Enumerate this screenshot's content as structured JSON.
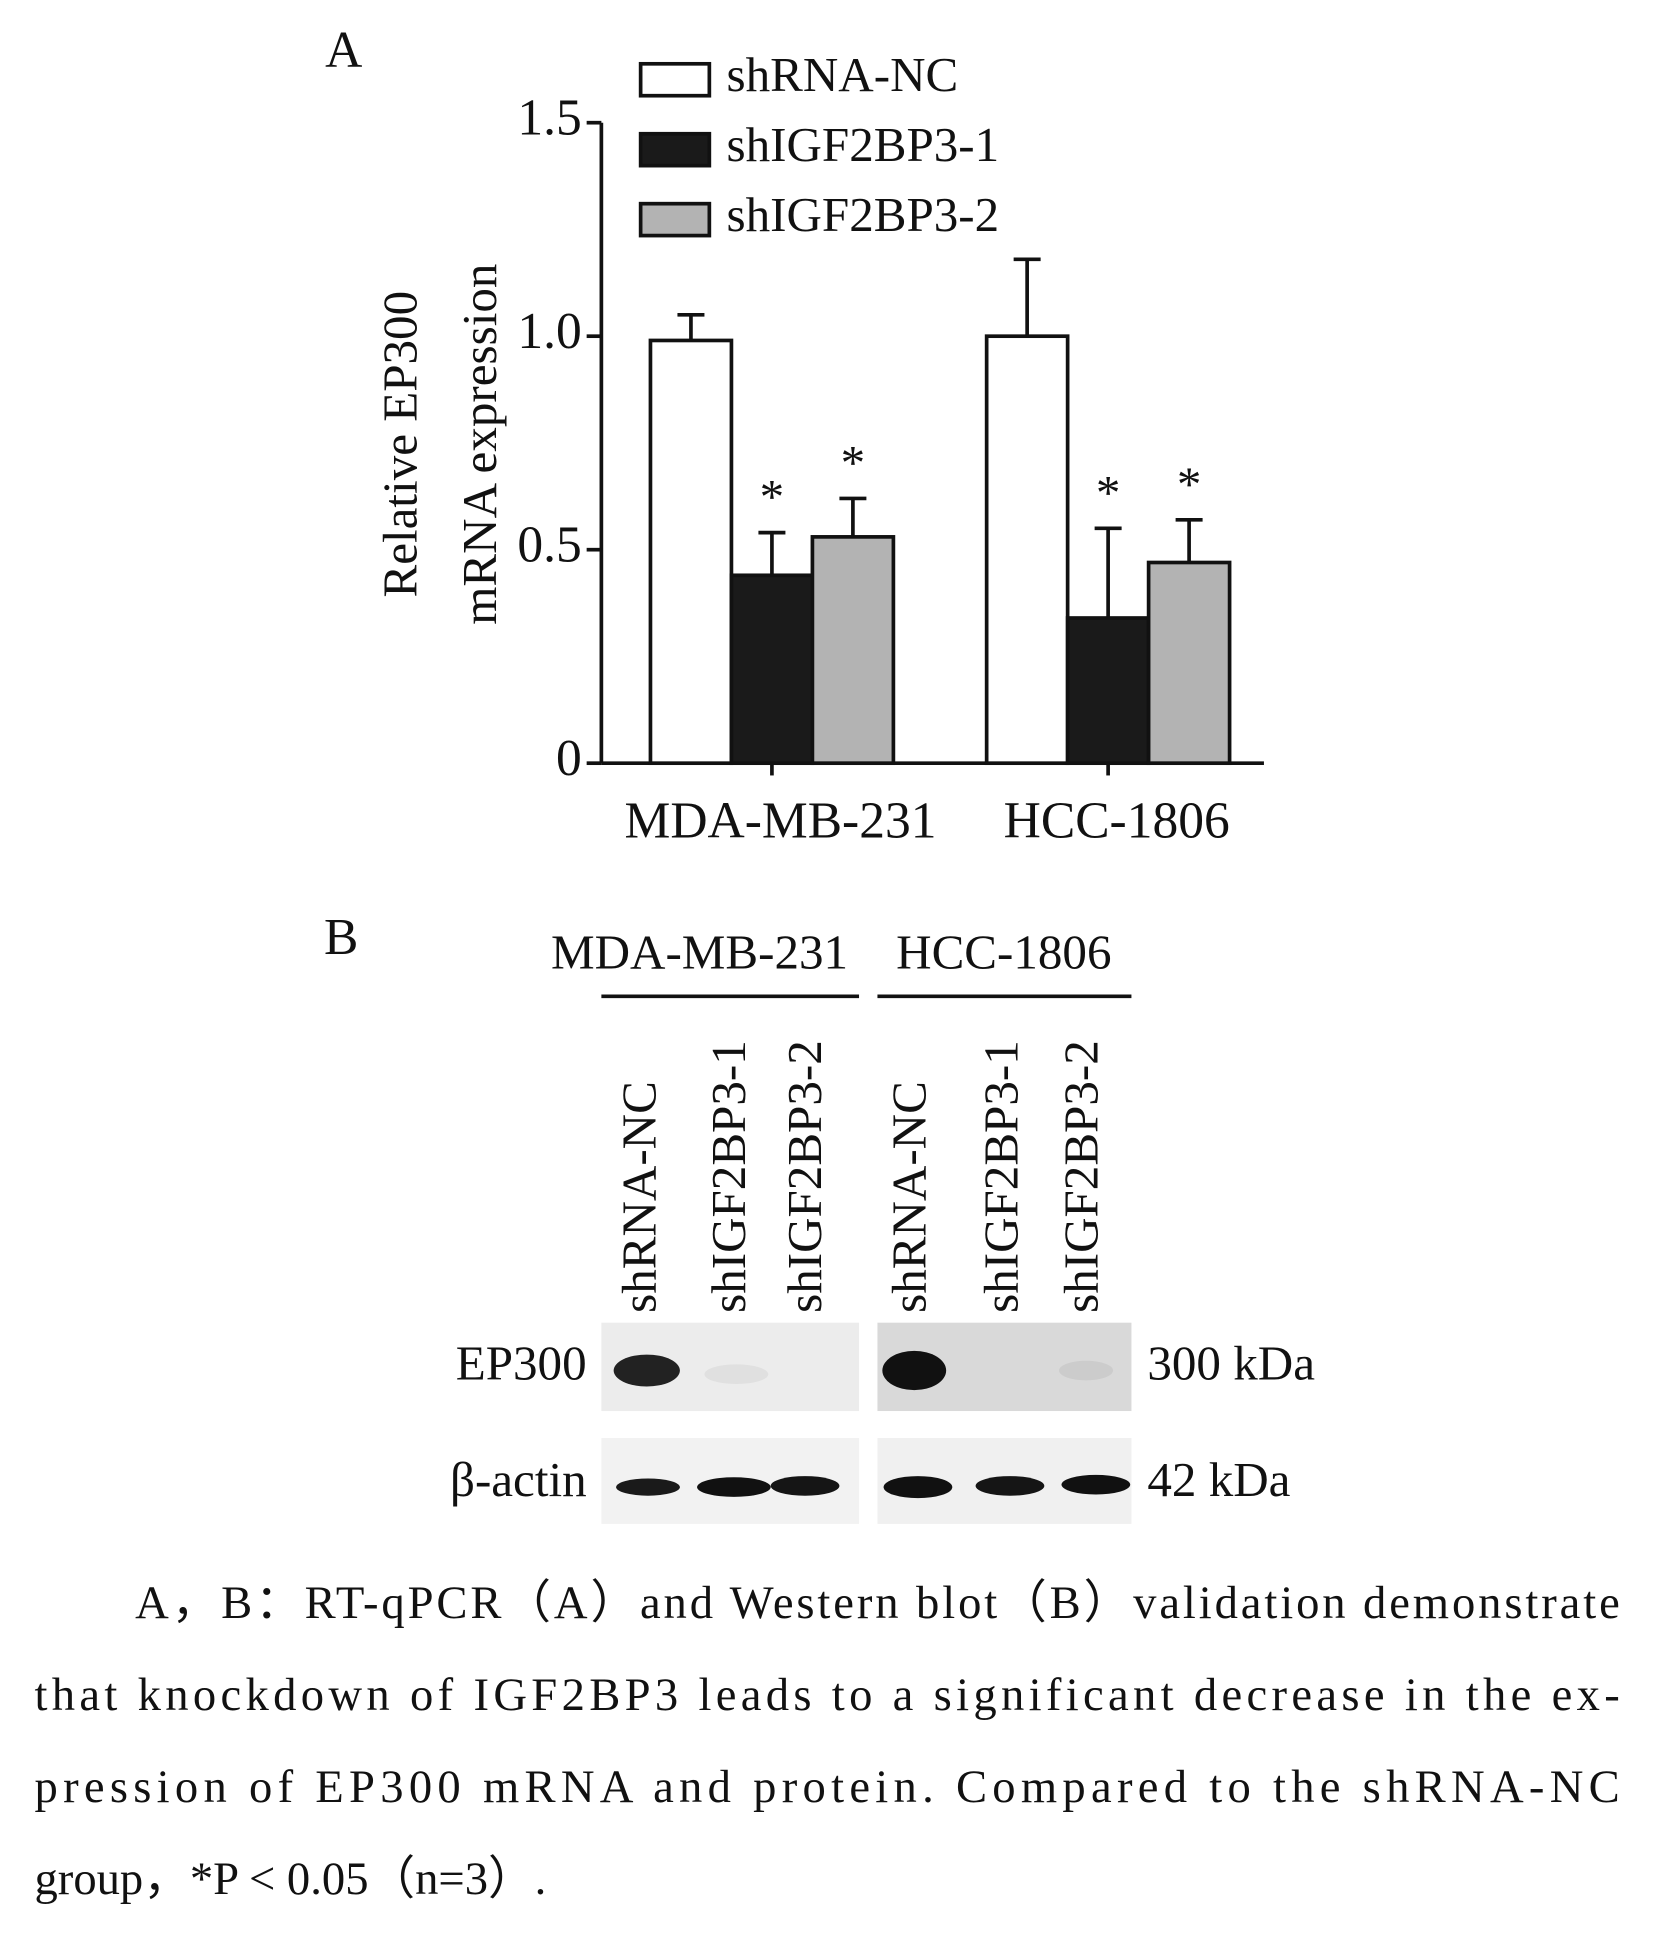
{
  "chart_data": {
    "type": "bar",
    "panel": "A",
    "ylabel": [
      "Relative EP300",
      "mRNA expression"
    ],
    "categories": [
      "MDA-MB-231",
      "HCC-1806"
    ],
    "series": [
      {
        "name": "shRNA-NC",
        "color": "#ffffff",
        "values": [
          0.99,
          1.0
        ],
        "errors": [
          0.06,
          0.18
        ]
      },
      {
        "name": "shIGF2BP3-1",
        "color": "#1a1a1a",
        "values": [
          0.44,
          0.34
        ],
        "errors": [
          0.1,
          0.21
        ],
        "significance": [
          "*",
          "*"
        ]
      },
      {
        "name": "shIGF2BP3-2",
        "color": "#b3b3b3",
        "values": [
          0.53,
          0.47
        ],
        "errors": [
          0.09,
          0.1
        ],
        "significance": [
          "*",
          "*"
        ]
      }
    ],
    "ylim": [
      0,
      1.5
    ],
    "yticks": [
      0,
      0.5,
      {
        "value": 1,
        "label": "1.0"
      },
      1.5
    ],
    "legend": "top-left"
  },
  "western_blot": {
    "panel": "B",
    "groups": [
      "MDA-MB-231",
      "HCC-1806"
    ],
    "lanes": [
      "shRNA-NC",
      "shIGF2BP3-1",
      "shIGF2BP3-2",
      "shRNA-NC",
      "shIGF2BP3-1",
      "shIGF2BP3-2"
    ],
    "proteins": [
      "EP300",
      "β-actin"
    ],
    "sizes": [
      "300 kDa",
      "42 kDa"
    ]
  },
  "caption": {
    "lines": [
      "A，B：RT-qPCR（A）and Western blot（B）validation demonstrate",
      "that knockdown of IGF2BP3 leads to a significant decrease in the ex-",
      "pression of EP300 mRNA and protein. Compared to the shRNA-NC",
      "group，*P < 0.05（n=3）."
    ]
  }
}
